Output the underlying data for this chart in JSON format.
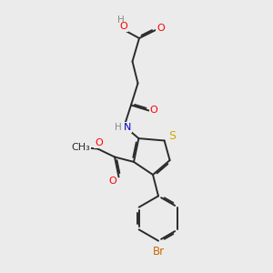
{
  "bg_color": "#ebebeb",
  "bond_color": "#2a2a2a",
  "atom_colors": {
    "O": "#ff0000",
    "N": "#0000cd",
    "S": "#ccaa00",
    "Br": "#cc6600",
    "C": "#2a2a2a",
    "H": "#888888"
  },
  "font_size": 8.0,
  "bond_width": 1.4,
  "dbo": 0.055
}
